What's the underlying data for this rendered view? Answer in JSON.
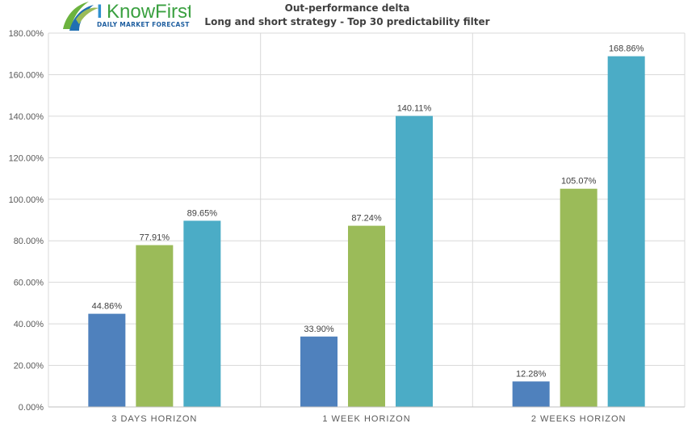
{
  "logo": {
    "brand": "I Know First",
    "tagline": "Daily Market Forecast"
  },
  "colors": {
    "series1": "#4f81bd",
    "series2": "#9bbb59",
    "series3": "#4bacc6",
    "grid": "#d9d9d9",
    "logo_green": "#6cb33f",
    "logo_blue": "#1f6fb2"
  },
  "chart_data": {
    "type": "bar",
    "title": "Out-performance delta",
    "subtitle": "Long and short strategy - Top 30 predictability filter",
    "categories": [
      "3 DAYS HORIZON",
      "1 WEEK HORIZON",
      "2 WEEKS HORIZON"
    ],
    "series": [
      {
        "values": [
          44.86,
          33.9,
          12.28
        ],
        "labels": [
          "44.86%",
          "33.90%",
          "12.28%"
        ]
      },
      {
        "values": [
          77.91,
          87.24,
          105.07
        ],
        "labels": [
          "77.91%",
          "87.24%",
          "105.07%"
        ]
      },
      {
        "values": [
          89.65,
          140.11,
          168.86
        ],
        "labels": [
          "89.65%",
          "140.11%",
          "168.86%"
        ]
      }
    ],
    "ylim": [
      0,
      180
    ],
    "yticks": [
      0,
      20,
      40,
      60,
      80,
      100,
      120,
      140,
      160,
      180
    ],
    "ytick_labels": [
      "0.00%",
      "20.00%",
      "40.00%",
      "60.00%",
      "80.00%",
      "100.00%",
      "120.00%",
      "140.00%",
      "160.00%",
      "180.00%"
    ],
    "grid": true,
    "legend": "none"
  }
}
